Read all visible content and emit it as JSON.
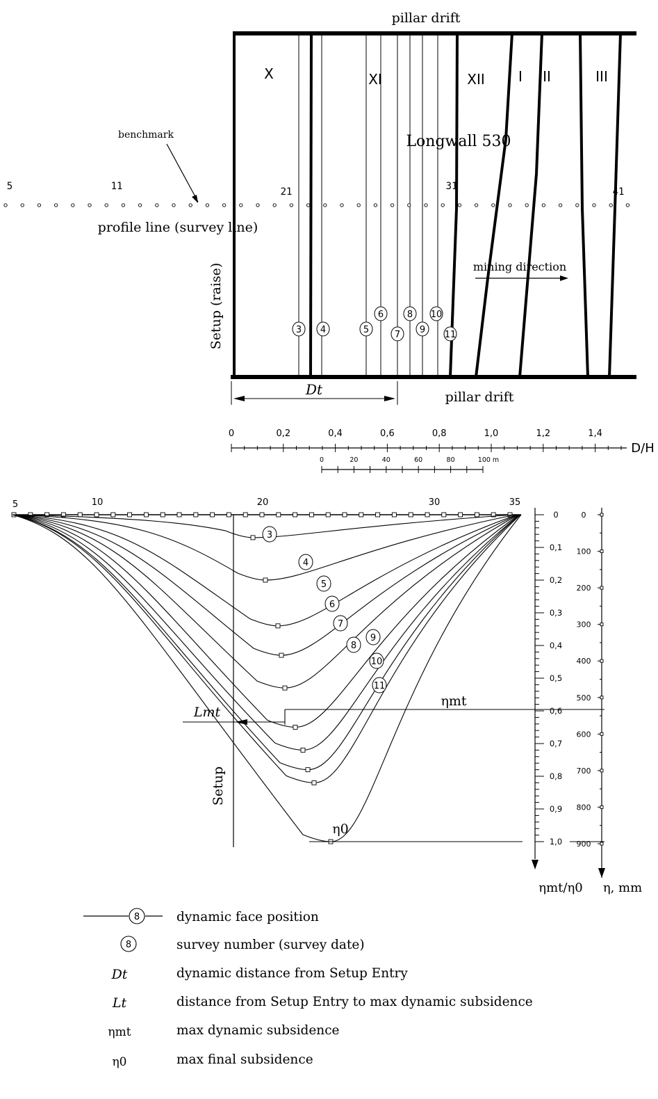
{
  "plan": {
    "top_label": "pillar drift",
    "bottom_label": "pillar drift",
    "panel_labels": [
      "X",
      "XI",
      "XII",
      "I",
      "II",
      "III"
    ],
    "longwall_label": "Longwall 530",
    "benchmark_label": "benchmark",
    "profile_label": "profile line (survey line)",
    "setup_label": "Setup (raise)",
    "mining_direction_label": "mining direction",
    "dt_label": "Dt",
    "station_labels": [
      "5",
      "11",
      "21",
      "31",
      "41"
    ],
    "face_numbers": [
      "3",
      "4",
      "5",
      "6",
      "7",
      "8",
      "9",
      "10",
      "11"
    ]
  },
  "dh_axis": {
    "label": "D/H",
    "ticks": [
      "0",
      "0,2",
      "0,4",
      "0,6",
      "0,8",
      "1,0",
      "1,2",
      "1,4"
    ]
  },
  "scale_bar": {
    "labels": [
      "0",
      "20",
      "40",
      "60",
      "80",
      "100 m"
    ]
  },
  "chart_data": {
    "type": "line",
    "x_tick_labels": [
      "5",
      "10",
      "20",
      "30",
      "35"
    ],
    "ratio_axis": {
      "label": "ηmt/η0",
      "ticks": [
        "0",
        "0,1",
        "0,2",
        "0,3",
        "0,4",
        "0,5",
        "0,6",
        "0,7",
        "0,8",
        "0,9",
        "1,0"
      ],
      "ylim": [
        0,
        1.0
      ]
    },
    "mm_axis": {
      "label": "η, mm",
      "ticks": [
        "0",
        "100",
        "200",
        "300",
        "400",
        "500",
        "600",
        "700",
        "800",
        "900"
      ],
      "ylim": [
        0,
        900
      ]
    },
    "annotations": {
      "eta_mt": "ηmt",
      "eta_0": "η0",
      "lmt": "Lmt",
      "setup": "Setup"
    },
    "series": [
      {
        "name": "3",
        "max_ratio": 0.07
      },
      {
        "name": "4",
        "max_ratio": 0.2
      },
      {
        "name": "5",
        "max_ratio": 0.34
      },
      {
        "name": "6",
        "max_ratio": 0.43
      },
      {
        "name": "7",
        "max_ratio": 0.53
      },
      {
        "name": "8",
        "max_ratio": 0.65
      },
      {
        "name": "9",
        "max_ratio": 0.72
      },
      {
        "name": "10",
        "max_ratio": 0.78
      },
      {
        "name": "11",
        "max_ratio": 0.82
      },
      {
        "name": "",
        "max_ratio": 1.0
      }
    ]
  },
  "legend": [
    {
      "symbol": "8",
      "text": "dynamic face position"
    },
    {
      "symbol": "8",
      "text": "survey number (survey date)"
    },
    {
      "symbol": "Dt",
      "text": "dynamic distance from Setup Entry"
    },
    {
      "symbol": "Lt",
      "text": "distance from Setup Entry to max dynamic subsidence"
    },
    {
      "symbol": "ηmt",
      "text": "max dynamic subsidence"
    },
    {
      "symbol": "η0",
      "text": "max final subsidence"
    }
  ]
}
